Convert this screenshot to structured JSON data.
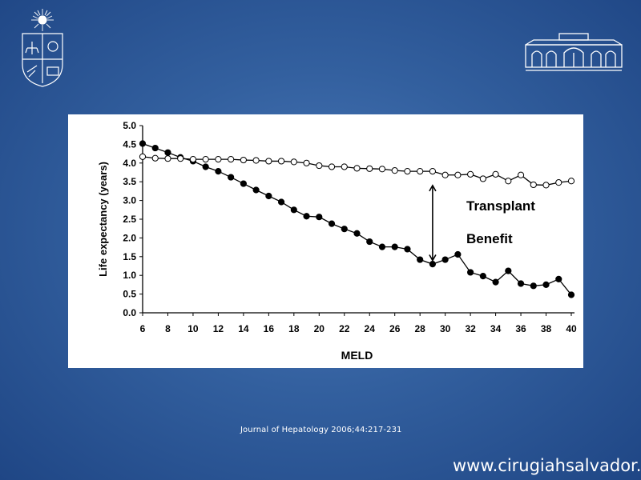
{
  "slide": {
    "citation": "Journal of Hepatology 2006;44:217-231",
    "website": "www.cirugiahsalvador.cl"
  },
  "colors": {
    "background": "#2d5898",
    "chart_bg": "#ffffff",
    "text": "#ffffff"
  },
  "chart_data": {
    "type": "line",
    "xlabel": "MELD",
    "ylabel": "Life expectancy (years)",
    "xlim": [
      6,
      40
    ],
    "ylim": [
      0.0,
      5.0
    ],
    "xticks": [
      6,
      8,
      10,
      12,
      14,
      16,
      18,
      20,
      22,
      24,
      26,
      28,
      30,
      32,
      34,
      36,
      38,
      40
    ],
    "yticks": [
      "0.0",
      "0.5",
      "1.0",
      "1.5",
      "2.0",
      "2.5",
      "3.0",
      "3.5",
      "4.0",
      "4.5",
      "5.0"
    ],
    "x": [
      6,
      7,
      8,
      9,
      10,
      11,
      12,
      13,
      14,
      15,
      16,
      17,
      18,
      19,
      20,
      21,
      22,
      23,
      24,
      25,
      26,
      27,
      28,
      29,
      30,
      31,
      32,
      33,
      34,
      35,
      36,
      37,
      38,
      39,
      40
    ],
    "series": [
      {
        "marker": "filled",
        "values": [
          4.52,
          4.4,
          4.28,
          4.15,
          4.05,
          3.9,
          3.78,
          3.62,
          3.45,
          3.28,
          3.12,
          2.96,
          2.75,
          2.58,
          2.56,
          2.38,
          2.24,
          2.12,
          1.9,
          1.76,
          1.76,
          1.7,
          1.42,
          1.3,
          1.42,
          1.56,
          1.08,
          0.98,
          0.82,
          1.12,
          0.78,
          0.72,
          0.75,
          0.9,
          0.48
        ]
      },
      {
        "marker": "open",
        "values": [
          4.17,
          4.13,
          4.12,
          4.12,
          4.1,
          4.1,
          4.1,
          4.1,
          4.08,
          4.07,
          4.05,
          4.05,
          4.03,
          4.0,
          3.93,
          3.9,
          3.9,
          3.86,
          3.85,
          3.84,
          3.8,
          3.78,
          3.78,
          3.78,
          3.68,
          3.68,
          3.7,
          3.58,
          3.7,
          3.52,
          3.68,
          3.42,
          3.41,
          3.48,
          3.52
        ]
      }
    ],
    "annotations": [
      "Transplant",
      "Benefit"
    ],
    "arrow": {
      "x": 29,
      "y_from": 3.4,
      "y_to": 1.4
    },
    "grid": false,
    "legend": "none"
  }
}
